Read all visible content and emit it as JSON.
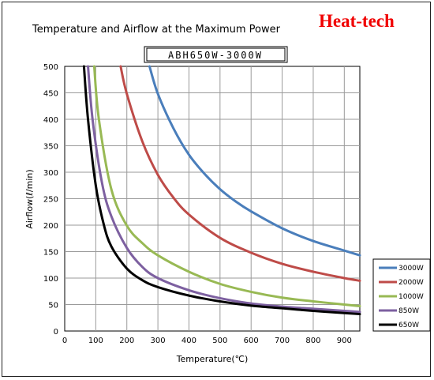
{
  "chart_data": {
    "type": "line",
    "title": "Temperature and Airflow at the Maximum Power",
    "brand": "Heat-tech",
    "model": "ABH650W-3000W",
    "xlabel": "Temperature(℃)",
    "ylabel": "Airflow(ℓ/min)",
    "xlim": [
      0,
      950
    ],
    "ylim": [
      0,
      500
    ],
    "xticks": [
      0,
      100,
      200,
      300,
      400,
      500,
      600,
      700,
      800,
      900
    ],
    "yticks": [
      0,
      50,
      100,
      150,
      200,
      250,
      300,
      350,
      400,
      450,
      500
    ],
    "grid": true,
    "legend_position": "right",
    "series": [
      {
        "name": "3000W",
        "color": "#4a7ebb",
        "points": [
          [
            273,
            500
          ],
          [
            300,
            448
          ],
          [
            350,
            383
          ],
          [
            400,
            333
          ],
          [
            450,
            297
          ],
          [
            500,
            268
          ],
          [
            550,
            245
          ],
          [
            600,
            226
          ],
          [
            700,
            194
          ],
          [
            800,
            170
          ],
          [
            900,
            152
          ],
          [
            950,
            143
          ]
        ]
      },
      {
        "name": "2000W",
        "color": "#be4b48",
        "points": [
          [
            180,
            500
          ],
          [
            200,
            448
          ],
          [
            250,
            358
          ],
          [
            300,
            295
          ],
          [
            350,
            252
          ],
          [
            400,
            220
          ],
          [
            500,
            176
          ],
          [
            600,
            148
          ],
          [
            700,
            127
          ],
          [
            800,
            112
          ],
          [
            900,
            100
          ],
          [
            950,
            95
          ]
        ]
      },
      {
        "name": "1000W",
        "color": "#98b954",
        "points": [
          [
            95,
            500
          ],
          [
            110,
            400
          ],
          [
            150,
            268
          ],
          [
            200,
            199
          ],
          [
            250,
            166
          ],
          [
            300,
            143
          ],
          [
            400,
            112
          ],
          [
            500,
            89
          ],
          [
            600,
            74
          ],
          [
            700,
            63
          ],
          [
            800,
            56
          ],
          [
            900,
            50
          ],
          [
            950,
            47
          ]
        ]
      },
      {
        "name": "850W",
        "color": "#7d60a0",
        "points": [
          [
            75,
            500
          ],
          [
            90,
            398
          ],
          [
            120,
            280
          ],
          [
            150,
            217
          ],
          [
            200,
            157
          ],
          [
            250,
            121
          ],
          [
            300,
            100
          ],
          [
            400,
            77
          ],
          [
            500,
            62
          ],
          [
            600,
            52
          ],
          [
            700,
            46
          ],
          [
            800,
            42
          ],
          [
            900,
            38
          ],
          [
            950,
            36
          ]
        ]
      },
      {
        "name": "650W",
        "color": "#000000",
        "points": [
          [
            62,
            500
          ],
          [
            75,
            400
          ],
          [
            100,
            275
          ],
          [
            125,
            203
          ],
          [
            150,
            160
          ],
          [
            200,
            118
          ],
          [
            250,
            96
          ],
          [
            300,
            83
          ],
          [
            400,
            67
          ],
          [
            500,
            56
          ],
          [
            600,
            48
          ],
          [
            700,
            43
          ],
          [
            800,
            38
          ],
          [
            900,
            34
          ],
          [
            950,
            32
          ]
        ]
      }
    ]
  }
}
